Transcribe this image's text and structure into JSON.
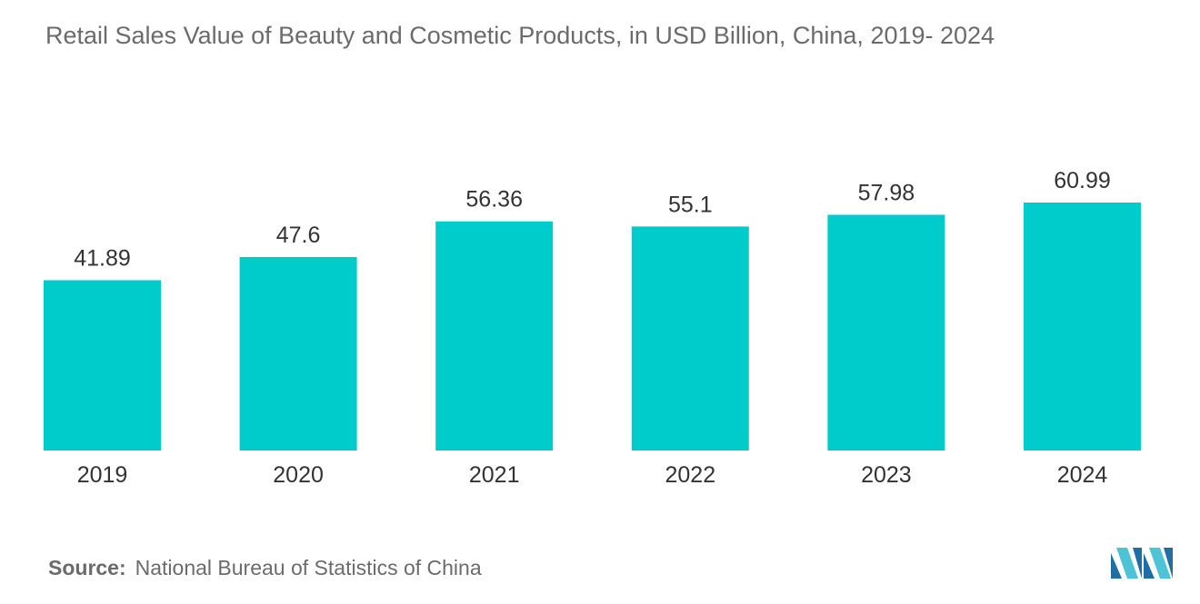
{
  "chart_data": {
    "type": "bar",
    "title": "Retail Sales Value of Beauty and Cosmetic Products, in USD Billion,  China,  2019- 2024",
    "categories": [
      "2019",
      "2020",
      "2021",
      "2022",
      "2023",
      "2024"
    ],
    "values": [
      41.89,
      47.6,
      56.36,
      55.1,
      57.98,
      60.99
    ],
    "value_labels": [
      "41.89",
      "47.6",
      "56.36",
      "55.1",
      "57.98",
      "60.99"
    ],
    "xlabel": "",
    "ylabel": "",
    "ylim": [
      0,
      60.99
    ],
    "grid": false,
    "legend": "none",
    "bar_color": "#00cccc"
  },
  "source": {
    "label": "Source:",
    "text": "National Bureau of Statistics of China"
  },
  "colors": {
    "text": "#6b6b6b",
    "bar": "#00cccc",
    "logo_dark": "#1f6fa3",
    "logo_light": "#4fc3d6"
  }
}
